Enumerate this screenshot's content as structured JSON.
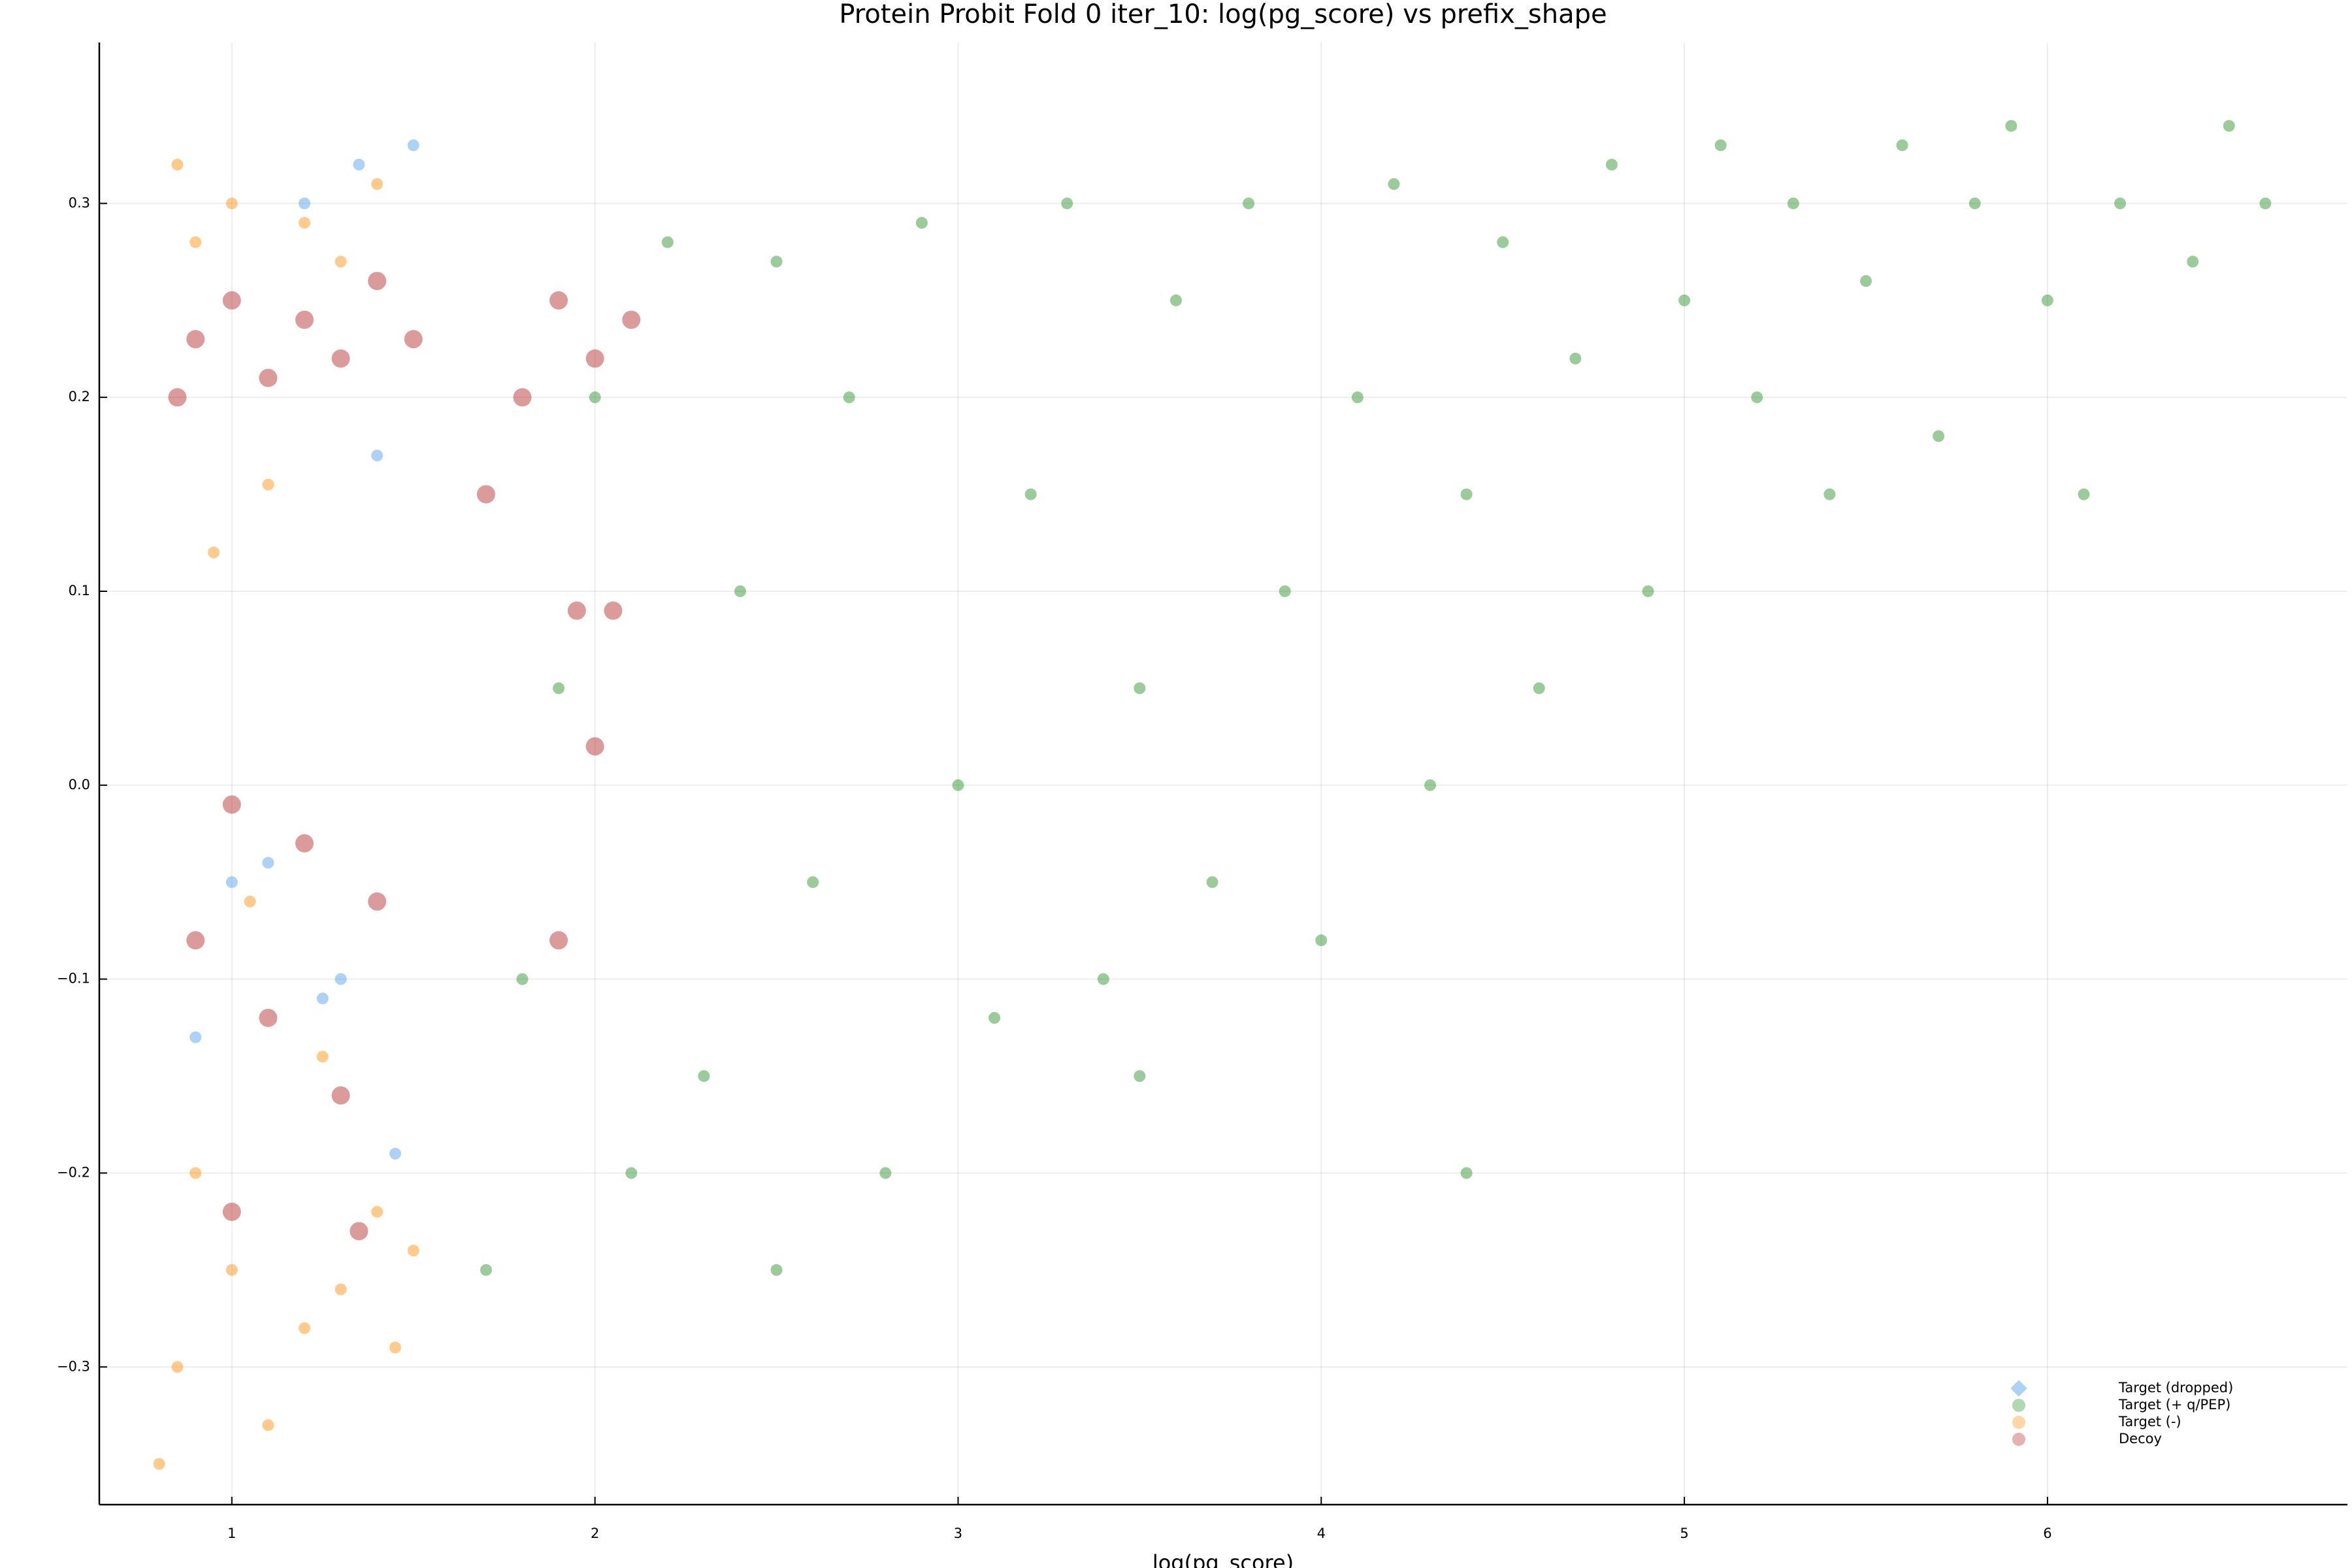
{
  "chart_data": {
    "type": "scatter",
    "title": "Protein Probit Fold 0 iter_10: log(pg_score) vs prefix_shape",
    "x_label": "log(pg_score)",
    "xlim": [
      0.635,
      6.826
    ],
    "ylim": [
      -0.371,
      0.383
    ],
    "xticks": [
      1,
      2,
      3,
      4,
      5,
      6
    ],
    "yticks": [
      {
        "value": -0.3,
        "label": "−0.3"
      },
      {
        "value": -0.2,
        "label": "−0.2"
      },
      {
        "value": -0.1,
        "label": "−0.1"
      },
      {
        "value": 0,
        "label": "0.0"
      },
      0.1,
      0.2,
      0.3
    ],
    "grid": true,
    "legend": "bottom-right",
    "series": [
      {
        "name": "Target (dropped)",
        "color": "#4a9be8",
        "x": [
          1.5,
          1.2,
          1.4,
          1.0,
          1.3,
          0.9,
          1.45,
          1.1,
          1.35,
          1.25
        ],
        "values": [
          0.33,
          0.3,
          0.17,
          -0.05,
          -0.1,
          -0.13,
          -0.19,
          -0.04,
          0.32,
          -0.11
        ]
      },
      {
        "name": "Target (+ q/PEP)",
        "color": "#228b22",
        "x": [
          1.7,
          1.8,
          1.9,
          2.0,
          2.1,
          2.2,
          2.3,
          2.4,
          2.5,
          2.6,
          2.7,
          2.8,
          2.9,
          3.0,
          3.1,
          3.2,
          3.3,
          3.4,
          3.5,
          3.6,
          3.7,
          3.8,
          3.9,
          4.0,
          4.1,
          4.2,
          4.3,
          4.4,
          4.5,
          4.6,
          4.7,
          4.8,
          4.9,
          5.0,
          5.1,
          5.2,
          5.3,
          5.4,
          5.5,
          5.6,
          5.7,
          5.8,
          5.9,
          6.0,
          6.1,
          6.2,
          6.4,
          6.5,
          6.6,
          3.5,
          2.5,
          4.4
        ],
        "values": [
          -0.25,
          -0.1,
          0.05,
          0.2,
          -0.2,
          0.28,
          -0.15,
          0.1,
          0.27,
          -0.05,
          0.2,
          -0.2,
          0.29,
          0.0,
          -0.12,
          0.15,
          0.3,
          -0.1,
          0.05,
          0.25,
          -0.05,
          0.3,
          0.1,
          -0.08,
          0.2,
          0.31,
          0.0,
          0.15,
          0.28,
          0.05,
          0.22,
          0.32,
          0.1,
          0.25,
          0.33,
          0.2,
          0.3,
          0.15,
          0.26,
          0.33,
          0.18,
          0.3,
          0.34,
          0.25,
          0.15,
          0.3,
          0.27,
          0.34,
          0.3,
          -0.15,
          -0.25,
          -0.2
        ]
      },
      {
        "name": "Target (-)",
        "color": "#ff8c00",
        "x": [
          0.85,
          1.0,
          1.2,
          1.4,
          0.9,
          1.3,
          1.1,
          0.95,
          1.0,
          1.2,
          1.4,
          0.85,
          1.1,
          1.3,
          0.9,
          1.5,
          1.05,
          1.25,
          0.8,
          1.45
        ],
        "values": [
          0.32,
          0.3,
          0.29,
          0.31,
          0.28,
          0.27,
          0.155,
          0.12,
          -0.25,
          -0.28,
          -0.22,
          -0.3,
          -0.33,
          -0.26,
          -0.2,
          -0.24,
          -0.06,
          -0.14,
          -0.35,
          -0.29
        ]
      },
      {
        "name": "Decoy",
        "color": "#b22222",
        "x": [
          0.9,
          1.0,
          1.1,
          1.2,
          1.3,
          1.4,
          1.5,
          0.85,
          1.9,
          2.0,
          1.8,
          2.1,
          1.95,
          2.05,
          1.0,
          1.2,
          1.4,
          0.9,
          1.1,
          1.3,
          1.0,
          1.35,
          1.9,
          2.0,
          1.7
        ],
        "values": [
          0.23,
          0.25,
          0.21,
          0.24,
          0.22,
          0.26,
          0.23,
          0.2,
          0.25,
          0.22,
          0.2,
          0.24,
          0.09,
          0.09,
          -0.01,
          -0.03,
          -0.06,
          -0.08,
          -0.12,
          -0.16,
          -0.22,
          -0.23,
          -0.08,
          0.02,
          0.15
        ]
      }
    ]
  }
}
